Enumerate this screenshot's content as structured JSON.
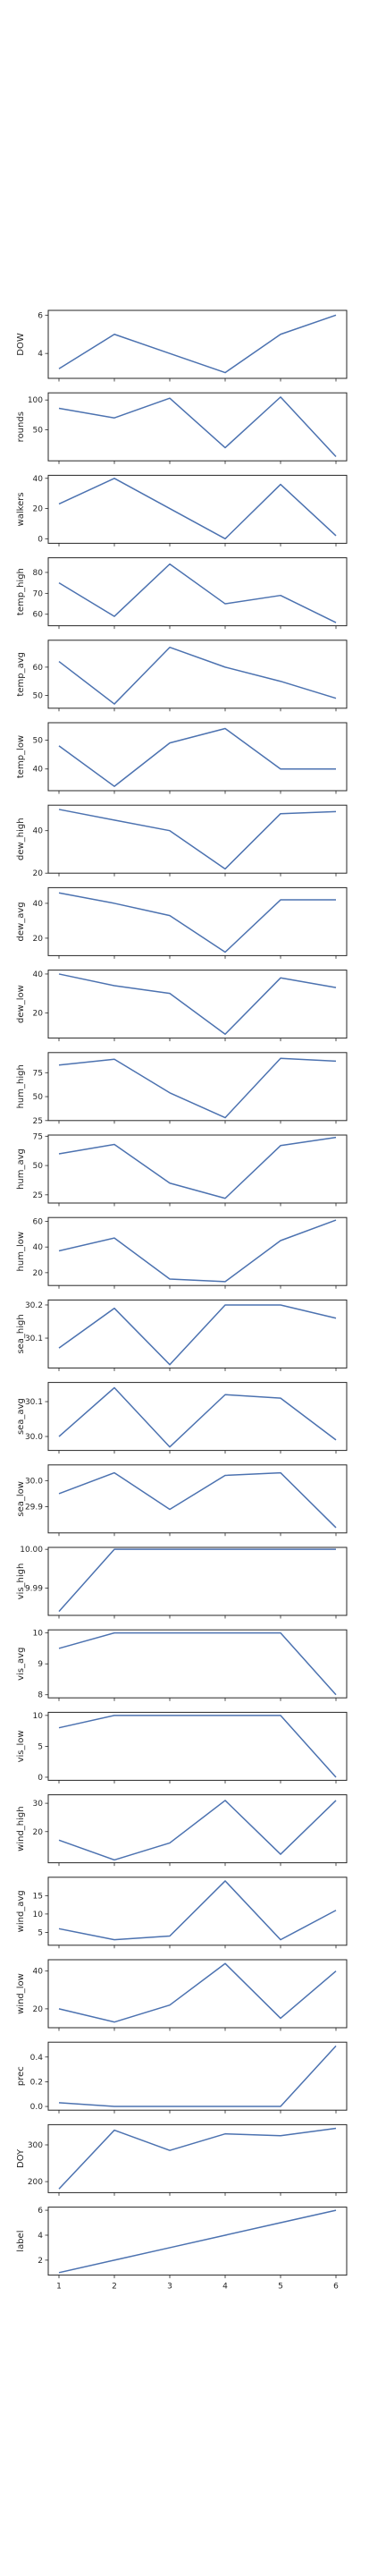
{
  "colors": {
    "line": "#4c72b0",
    "frame": "#262626"
  },
  "chart_data": {
    "type": "line",
    "x": [
      1,
      2,
      3,
      4,
      5,
      6
    ],
    "xticks": [
      "1",
      "2",
      "3",
      "4",
      "5",
      "6"
    ],
    "grid": false,
    "series": [
      {
        "name": "DOW",
        "values": [
          3.2,
          5.0,
          4.0,
          3.0,
          5.0,
          6.0
        ],
        "ylim": [
          2.7,
          6.25
        ],
        "yticks": [
          "4",
          "6"
        ]
      },
      {
        "name": "rounds",
        "values": [
          86,
          70,
          103,
          20,
          105,
          5
        ],
        "ylim": [
          -2,
          112
        ],
        "yticks": [
          "50",
          "100"
        ]
      },
      {
        "name": "walkers",
        "values": [
          23,
          40,
          20,
          0,
          36,
          2
        ],
        "ylim": [
          -3,
          42
        ],
        "yticks": [
          "0",
          "20",
          "40"
        ]
      },
      {
        "name": "temp_high",
        "values": [
          75,
          59,
          84,
          65,
          69,
          56
        ],
        "ylim": [
          54.5,
          87
        ],
        "yticks": [
          "60",
          "70",
          "80"
        ]
      },
      {
        "name": "temp_avg",
        "values": [
          62,
          47,
          67,
          60,
          55,
          49
        ],
        "ylim": [
          45.5,
          69.5
        ],
        "yticks": [
          "50",
          "60"
        ]
      },
      {
        "name": "temp_low",
        "values": [
          48,
          34,
          49,
          54,
          40,
          40
        ],
        "ylim": [
          32.5,
          56
        ],
        "yticks": [
          "40",
          "50"
        ]
      },
      {
        "name": "dew_high",
        "values": [
          50,
          45,
          40,
          22,
          48,
          49
        ],
        "ylim": [
          20,
          52
        ],
        "yticks": [
          "20",
          "40"
        ]
      },
      {
        "name": "dew_avg",
        "values": [
          46,
          40,
          33,
          12,
          42,
          42
        ],
        "ylim": [
          10,
          49
        ],
        "yticks": [
          "20",
          "40"
        ]
      },
      {
        "name": "dew_low",
        "values": [
          40,
          34,
          30,
          9,
          38,
          33
        ],
        "ylim": [
          7,
          42
        ],
        "yticks": [
          "20",
          "40"
        ]
      },
      {
        "name": "hum_high",
        "values": [
          83,
          89,
          54,
          28,
          90,
          87
        ],
        "ylim": [
          25,
          96
        ],
        "yticks": [
          "25",
          "50",
          "75"
        ]
      },
      {
        "name": "hum_avg",
        "values": [
          60,
          68,
          35,
          22,
          67,
          74
        ],
        "ylim": [
          18,
          76
        ],
        "yticks": [
          "25",
          "50",
          "75"
        ]
      },
      {
        "name": "hum_low",
        "values": [
          37,
          47,
          15,
          13,
          45,
          61
        ],
        "ylim": [
          10,
          63
        ],
        "yticks": [
          "20",
          "40",
          "60"
        ]
      },
      {
        "name": "sea_high",
        "values": [
          30.07,
          30.19,
          30.02,
          30.2,
          30.2,
          30.16
        ],
        "ylim": [
          30.01,
          30.215
        ],
        "yticks": [
          "30.1",
          "30.2"
        ]
      },
      {
        "name": "sea_avg",
        "values": [
          30.0,
          30.14,
          29.97,
          30.12,
          30.11,
          29.99
        ],
        "ylim": [
          29.96,
          30.155
        ],
        "yticks": [
          "30.0",
          "30.1"
        ]
      },
      {
        "name": "sea_low",
        "values": [
          29.95,
          30.03,
          29.89,
          30.02,
          30.03,
          29.82
        ],
        "ylim": [
          29.8,
          30.06
        ],
        "yticks": [
          "29.9",
          "30.0"
        ]
      },
      {
        "name": "vis_high",
        "values": [
          9.984,
          10.0,
          10.0,
          10.0,
          10.0,
          10.0
        ],
        "ylim": [
          9.983,
          10.0005
        ],
        "yticks": [
          "9.99",
          "10.00"
        ]
      },
      {
        "name": "vis_avg",
        "values": [
          9.5,
          10.0,
          10.0,
          10.0,
          10.0,
          8.0
        ],
        "ylim": [
          7.9,
          10.1
        ],
        "yticks": [
          "8",
          "9",
          "10"
        ]
      },
      {
        "name": "vis_low",
        "values": [
          8,
          10,
          10,
          10,
          10,
          0
        ],
        "ylim": [
          -0.5,
          10.5
        ],
        "yticks": [
          "0",
          "5",
          "10"
        ]
      },
      {
        "name": "wind_high",
        "values": [
          17,
          10,
          16,
          31,
          12,
          31
        ],
        "ylim": [
          9,
          33
        ],
        "yticks": [
          "20",
          "30"
        ]
      },
      {
        "name": "wind_avg",
        "values": [
          6,
          3,
          4,
          19,
          3,
          11
        ],
        "ylim": [
          1.5,
          20
        ],
        "yticks": [
          "5",
          "10",
          "15"
        ]
      },
      {
        "name": "wind_low",
        "values": [
          20,
          13,
          22,
          44,
          15,
          40
        ],
        "ylim": [
          10,
          46
        ],
        "yticks": [
          "20",
          "40"
        ]
      },
      {
        "name": "prec",
        "values": [
          0.03,
          0.0,
          0.0,
          0.0,
          0.0,
          0.49
        ],
        "ylim": [
          -0.03,
          0.52
        ],
        "yticks": [
          "0.0",
          "0.2",
          "0.4"
        ]
      },
      {
        "name": "DOY",
        "values": [
          180,
          340,
          285,
          330,
          325,
          345
        ],
        "ylim": [
          170,
          355
        ],
        "yticks": [
          "200",
          "300"
        ]
      },
      {
        "name": "label",
        "values": [
          1,
          2,
          3,
          4,
          5,
          6
        ],
        "ylim": [
          0.8,
          6.25
        ],
        "yticks": [
          "2",
          "4",
          "6"
        ]
      }
    ]
  }
}
